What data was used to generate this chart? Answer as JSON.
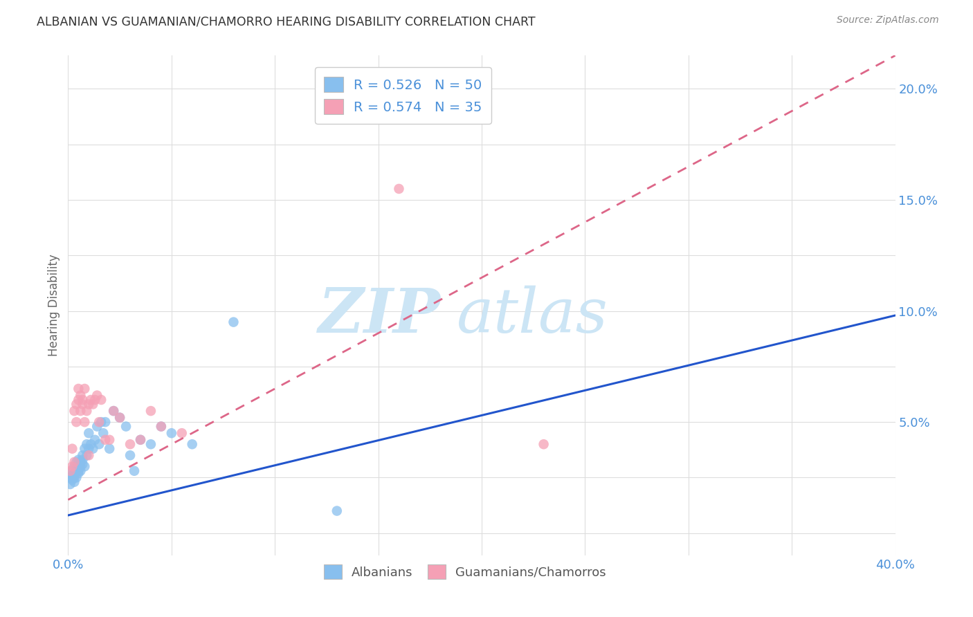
{
  "title": "ALBANIAN VS GUAMANIAN/CHAMORRO HEARING DISABILITY CORRELATION CHART",
  "source": "Source: ZipAtlas.com",
  "ylabel": "Hearing Disability",
  "xlim": [
    0.0,
    0.4
  ],
  "ylim": [
    -0.01,
    0.215
  ],
  "x_ticks": [
    0.0,
    0.05,
    0.1,
    0.15,
    0.2,
    0.25,
    0.3,
    0.35,
    0.4
  ],
  "y_ticks": [
    0.0,
    0.025,
    0.05,
    0.075,
    0.1,
    0.125,
    0.15,
    0.175,
    0.2
  ],
  "albanian_color": "#88bfee",
  "guamanian_color": "#f5a0b5",
  "albanian_line_color": "#2255cc",
  "guamanian_line_color": "#dd6688",
  "albanian_R": 0.526,
  "albanian_N": 50,
  "guamanian_R": 0.574,
  "guamanian_N": 35,
  "background_color": "#ffffff",
  "grid_color": "#dddddd",
  "title_color": "#333333",
  "axis_color": "#4a90d9",
  "watermark_color": "#cce5f5",
  "legend_label_albanian": "Albanians",
  "legend_label_guamanian": "Guamanians/Chamorros",
  "albanian_x": [
    0.001,
    0.001,
    0.002,
    0.002,
    0.002,
    0.003,
    0.003,
    0.003,
    0.003,
    0.004,
    0.004,
    0.004,
    0.004,
    0.005,
    0.005,
    0.005,
    0.005,
    0.006,
    0.006,
    0.006,
    0.007,
    0.007,
    0.007,
    0.008,
    0.008,
    0.009,
    0.009,
    0.01,
    0.01,
    0.011,
    0.012,
    0.013,
    0.014,
    0.015,
    0.016,
    0.017,
    0.018,
    0.02,
    0.022,
    0.025,
    0.028,
    0.03,
    0.032,
    0.035,
    0.04,
    0.045,
    0.05,
    0.06,
    0.08,
    0.13
  ],
  "albanian_y": [
    0.025,
    0.022,
    0.028,
    0.024,
    0.026,
    0.025,
    0.027,
    0.03,
    0.023,
    0.028,
    0.03,
    0.025,
    0.032,
    0.028,
    0.03,
    0.027,
    0.033,
    0.03,
    0.028,
    0.032,
    0.031,
    0.035,
    0.033,
    0.03,
    0.038,
    0.035,
    0.04,
    0.038,
    0.045,
    0.04,
    0.038,
    0.042,
    0.048,
    0.04,
    0.05,
    0.045,
    0.05,
    0.038,
    0.055,
    0.052,
    0.048,
    0.035,
    0.028,
    0.042,
    0.04,
    0.048,
    0.045,
    0.04,
    0.095,
    0.01
  ],
  "guamanian_x": [
    0.001,
    0.002,
    0.002,
    0.003,
    0.003,
    0.004,
    0.004,
    0.005,
    0.005,
    0.006,
    0.006,
    0.007,
    0.007,
    0.008,
    0.008,
    0.009,
    0.01,
    0.01,
    0.011,
    0.012,
    0.013,
    0.014,
    0.015,
    0.016,
    0.018,
    0.02,
    0.022,
    0.025,
    0.03,
    0.035,
    0.04,
    0.045,
    0.055,
    0.16,
    0.23
  ],
  "guamanian_y": [
    0.028,
    0.03,
    0.038,
    0.032,
    0.055,
    0.058,
    0.05,
    0.06,
    0.065,
    0.055,
    0.062,
    0.06,
    0.058,
    0.065,
    0.05,
    0.055,
    0.058,
    0.035,
    0.06,
    0.058,
    0.06,
    0.062,
    0.05,
    0.06,
    0.042,
    0.042,
    0.055,
    0.052,
    0.04,
    0.042,
    0.055,
    0.048,
    0.045,
    0.155,
    0.04
  ],
  "albanian_line_x": [
    0.0,
    0.4
  ],
  "albanian_line_y": [
    0.008,
    0.098
  ],
  "guamanian_line_x": [
    0.0,
    0.4
  ],
  "guamanian_line_y": [
    0.015,
    0.215
  ]
}
